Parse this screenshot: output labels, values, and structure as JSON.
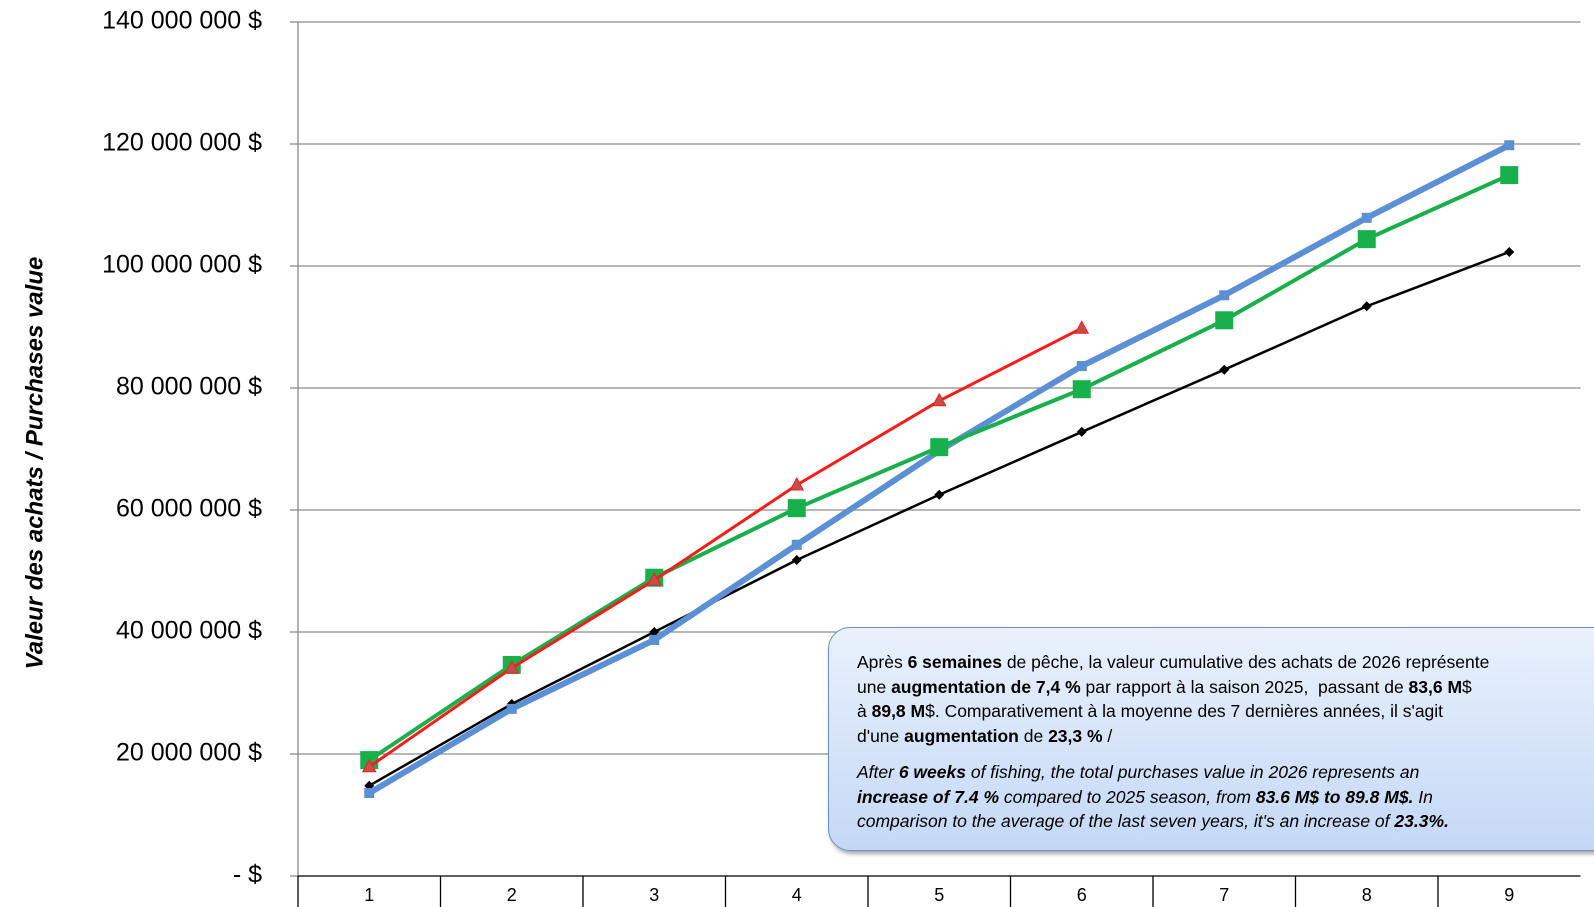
{
  "chart_data": {
    "type": "line",
    "y_label": "Valeur des achats / Purchases value",
    "categories": [
      "1",
      "2",
      "3",
      "4",
      "5",
      "6",
      "7",
      "8",
      "9"
    ],
    "series": [
      {
        "color": "#000000",
        "marker": "diamond",
        "width": 2.5,
        "values": [
          14800000.0,
          28200000.0,
          40000000.0,
          51800000.0,
          62500000.0,
          72800000.0,
          83000000.0,
          93400000.0,
          102300000.0
        ]
      },
      {
        "color": "#5b8fd6",
        "marker": "square-small",
        "width": 6,
        "values": [
          13600000.0,
          27400000.0,
          38700000.0,
          54300000.0,
          69700000.0,
          83600000.0,
          95200000.0,
          107900000.0,
          119800000.0
        ]
      },
      {
        "color": "#17b04a",
        "marker": "square",
        "width": 4,
        "values": [
          19000000.0,
          34600000.0,
          48900000.0,
          60300000.0,
          70300000.0,
          79800000.0,
          91100000.0,
          104400000.0,
          114900000.0
        ]
      },
      {
        "color": "#ff1a1a",
        "marker": "triangle",
        "width": 3,
        "values": [
          17900000.0,
          34100000.0,
          48500000.0,
          64100000.0,
          77900000.0,
          89800000.0,
          null,
          null,
          null
        ]
      }
    ],
    "ylim": [
      0,
      140000000
    ],
    "yticks": [
      {
        "value": 0,
        "label": "-  $"
      },
      {
        "value": 20000000,
        "label": "20 000 000 $"
      },
      {
        "value": 40000000,
        "label": "40 000 000 $"
      },
      {
        "value": 60000000,
        "label": "60 000 000 $"
      },
      {
        "value": 80000000,
        "label": "80 000 000 $"
      },
      {
        "value": 100000000,
        "label": "100 000 000 $"
      },
      {
        "value": 120000000,
        "label": "120 000 000 $"
      },
      {
        "value": 140000000,
        "label": "140 000 000 $"
      }
    ],
    "grid": true,
    "annotation": [
      [
        {
          "text": "Après "
        },
        {
          "text": "6 semaines",
          "bold": true
        },
        {
          "text": " de pêche, la valeur cumulative des achats de 2026 représente"
        }
      ],
      [
        {
          "text": "une "
        },
        {
          "text": "augmentation de 7,4 %",
          "bold": true
        },
        {
          "text": " par rapport à la saison 2025,  passant de "
        },
        {
          "text": "83,6 M",
          "bold": true
        },
        {
          "text": "$"
        }
      ],
      [
        {
          "text": "à "
        },
        {
          "text": "89,8 M",
          "bold": true
        },
        {
          "text": "$. Comparativement à la moyenne des 7 dernières années, il s'agit"
        }
      ],
      [
        {
          "text": "d'une "
        },
        {
          "text": "augmentation",
          "bold": true
        },
        {
          "text": " de "
        },
        {
          "text": "23,3 %",
          "bold": true
        },
        {
          "text": " /"
        }
      ],
      [
        {
          "text": "After ",
          "italic": true
        },
        {
          "text": "6 weeks",
          "bold": true,
          "italic": true
        },
        {
          "text": " of fishing, the total purchases value in 2026 represents an",
          "italic": true
        }
      ],
      [
        {
          "text": "increase of 7.4 %",
          "bold": true,
          "italic": true
        },
        {
          "text": " compared to 2025 season, from ",
          "italic": true
        },
        {
          "text": "83.6 M$ to 89.8 M$.",
          "bold": true,
          "italic": true
        },
        {
          "text": " In",
          "italic": true
        }
      ],
      [
        {
          "text": "comparison to the average of the last seven years, it's an increase of ",
          "italic": true
        },
        {
          "text": "23.3%.",
          "bold": true,
          "italic": true
        }
      ]
    ]
  }
}
